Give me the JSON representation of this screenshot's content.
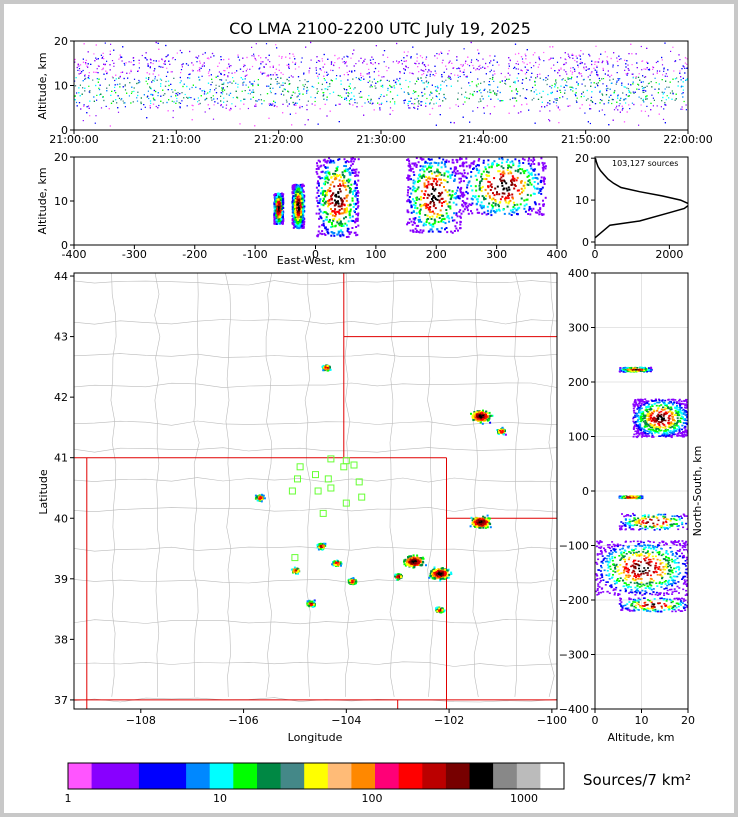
{
  "title": "CO LMA 2100-2200 UTC July 19, 2025",
  "time_height": {
    "ylabel": "Altitude, km",
    "xticks": [
      "21:00:00",
      "21:10:00",
      "21:20:00",
      "21:30:00",
      "21:40:00",
      "21:50:00",
      "22:00:00"
    ],
    "yticks": [
      "0",
      "10",
      "20"
    ]
  },
  "ew_panel": {
    "xlabel": "East-West, km",
    "ylabel": "Altitude, km",
    "xticks": [
      "-400",
      "-300",
      "-200",
      "-100",
      "0",
      "100",
      "200",
      "300",
      "400"
    ],
    "yticks": [
      "0",
      "10",
      "20"
    ]
  },
  "hist_panel": {
    "annotation": "103,127 sources",
    "xticks": [
      "0",
      "2000"
    ],
    "yticks": [
      "0",
      "10",
      "20"
    ]
  },
  "map_panel": {
    "xlabel": "Longitude",
    "ylabel": "Latitude",
    "xticks": [
      "−108",
      "−106",
      "−104",
      "−102",
      "−100"
    ],
    "yticks": [
      "37",
      "38",
      "39",
      "40",
      "41",
      "42",
      "43",
      "44"
    ]
  },
  "ns_panel": {
    "xlabel": "Altitude, km",
    "ylabel": "North-South, km",
    "xticks": [
      "0",
      "10",
      "20"
    ],
    "yticks": [
      "−400",
      "−300",
      "−200",
      "−100",
      "0",
      "100",
      "200",
      "300",
      "400"
    ]
  },
  "colorbar": {
    "label": "Sources/7 km²",
    "ticks": [
      "1",
      "10",
      "100",
      "1000"
    ],
    "colors": [
      "#ff55ff",
      "#8800ff",
      "#8800ff",
      "#0000ff",
      "#0000ff",
      "#0088ff",
      "#00ffff",
      "#00ff00",
      "#008844",
      "#448888",
      "#ffff00",
      "#ffbb77",
      "#ff8800",
      "#ff0077",
      "#ff0000",
      "#bb0000",
      "#770000",
      "#000000",
      "#888888",
      "#bbbbbb",
      "#ffffff"
    ]
  },
  "chart_data": [
    {
      "type": "scatter",
      "panel": "time-height",
      "x_range": [
        "21:00:00",
        "22:00:00"
      ],
      "ylim": [
        0,
        20
      ],
      "ylabel": "Altitude, km",
      "description_values": {
        "dense_altitude_range_km": [
          5,
          17
        ]
      }
    },
    {
      "type": "heatmap",
      "panel": "east-west vs altitude",
      "xlim": [
        -400,
        400
      ],
      "ylim": [
        0,
        20
      ],
      "clusters": [
        {
          "x": [
            -70,
            -55
          ],
          "z": [
            5,
            12
          ]
        },
        {
          "x": [
            -40,
            -20
          ],
          "z": [
            4,
            14
          ]
        },
        {
          "x": [
            0,
            70
          ],
          "z": [
            2,
            20
          ]
        },
        {
          "x": [
            150,
            240
          ],
          "z": [
            3,
            20
          ]
        },
        {
          "x": [
            240,
            380
          ],
          "z": [
            7,
            20
          ]
        }
      ]
    },
    {
      "type": "line",
      "panel": "altitude histogram",
      "xlim": [
        0,
        2500
      ],
      "ylim": [
        0,
        20
      ],
      "total_sources": 103127,
      "profile": [
        [
          0,
          1
        ],
        [
          400,
          4
        ],
        [
          1200,
          5
        ],
        [
          2000,
          7
        ],
        [
          2400,
          8
        ],
        [
          2550,
          9
        ],
        [
          2300,
          10
        ],
        [
          1800,
          11
        ],
        [
          1200,
          12
        ],
        [
          700,
          13
        ],
        [
          500,
          14
        ],
        [
          350,
          15
        ],
        [
          250,
          16
        ],
        [
          150,
          17
        ],
        [
          80,
          18
        ],
        [
          40,
          19
        ],
        [
          10,
          20
        ]
      ]
    },
    {
      "type": "heatmap",
      "panel": "plan view map",
      "xlim": [
        -109.3,
        -99.9
      ],
      "ylim": [
        36.85,
        44.05
      ],
      "xlabel": "Longitude",
      "ylabel": "Latitude",
      "clusters": [
        {
          "lon": -102.7,
          "lat": 39.3
        },
        {
          "lon": -102.2,
          "lat": 39.1
        },
        {
          "lon": -102.2,
          "lat": 38.5
        },
        {
          "lon": -103.0,
          "lat": 39.05
        },
        {
          "lon": -101.4,
          "lat": 41.7
        },
        {
          "lon": -101.0,
          "lat": 41.45
        },
        {
          "lon": -101.4,
          "lat": 39.95
        },
        {
          "lon": -103.9,
          "lat": 38.97
        },
        {
          "lon": -104.2,
          "lat": 39.27
        },
        {
          "lon": -104.5,
          "lat": 39.55
        },
        {
          "lon": -104.7,
          "lat": 38.6
        },
        {
          "lon": -104.4,
          "lat": 42.5
        },
        {
          "lon": -105.7,
          "lat": 40.35
        },
        {
          "lon": -105.0,
          "lat": 39.15
        }
      ],
      "stations": [
        [
          -104.0,
          40.95
        ],
        [
          -103.85,
          40.88
        ],
        [
          -104.3,
          40.98
        ],
        [
          -104.6,
          40.72
        ],
        [
          -104.9,
          40.85
        ],
        [
          -104.95,
          40.65
        ],
        [
          -104.35,
          40.65
        ],
        [
          -104.55,
          40.45
        ],
        [
          -104.3,
          40.5
        ],
        [
          -104.0,
          40.25
        ],
        [
          -103.75,
          40.6
        ],
        [
          -103.7,
          40.35
        ],
        [
          -104.45,
          40.08
        ],
        [
          -105.05,
          40.45
        ],
        [
          -105.0,
          39.35
        ],
        [
          -104.05,
          40.85
        ]
      ]
    },
    {
      "type": "heatmap",
      "panel": "altitude vs north-south",
      "xlim": [
        0,
        20
      ],
      "ylim": [
        -400,
        400
      ],
      "clusters": [
        {
          "alt": [
            5,
            12
          ],
          "ns": [
            220,
            228
          ]
        },
        {
          "alt": [
            8,
            20
          ],
          "ns": [
            100,
            170
          ]
        },
        {
          "alt": [
            5,
            20
          ],
          "ns": [
            -70,
            -40
          ]
        },
        {
          "alt": [
            0,
            20
          ],
          "ns": [
            -190,
            -90
          ]
        },
        {
          "alt": [
            5,
            20
          ],
          "ns": [
            -220,
            -195
          ]
        },
        {
          "alt": [
            5,
            10
          ],
          "ns": [
            -12,
            -8
          ]
        }
      ]
    }
  ]
}
